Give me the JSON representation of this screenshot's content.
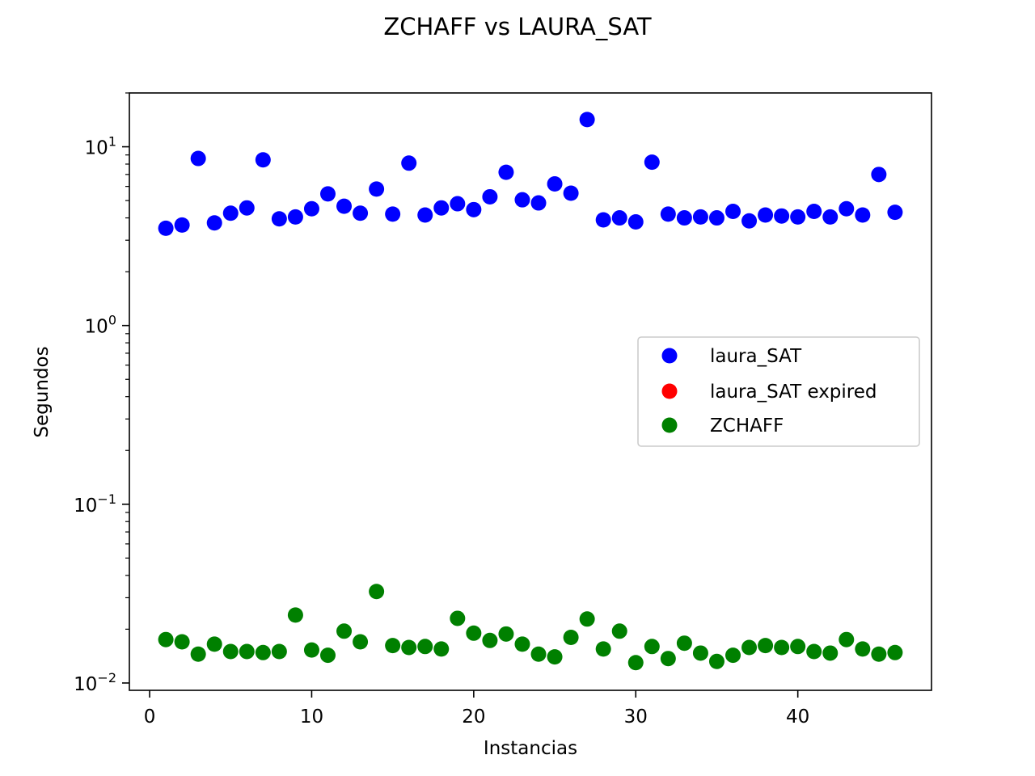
{
  "chart_data": {
    "type": "scatter",
    "title": "ZCHAFF vs LAURA_SAT",
    "xlabel": "Instancias",
    "ylabel": "Segundos",
    "yscale": "log",
    "xlim": [
      -1.25,
      48.25
    ],
    "ylim": [
      0.0091,
      20.0
    ],
    "x_ticks": [
      0,
      10,
      20,
      30,
      40
    ],
    "y_ticks": [
      {
        "value": 0.01,
        "base": "10",
        "exp": "−2"
      },
      {
        "value": 0.1,
        "base": "10",
        "exp": "−1"
      },
      {
        "value": 1,
        "base": "10",
        "exp": "0"
      },
      {
        "value": 10,
        "base": "10",
        "exp": "1"
      }
    ],
    "grid": false,
    "legend_position": "center-right",
    "series": [
      {
        "name": "laura_SAT",
        "color": "#0000ff",
        "x": [
          1,
          2,
          3,
          4,
          5,
          6,
          7,
          8,
          9,
          10,
          11,
          12,
          13,
          14,
          15,
          16,
          17,
          18,
          19,
          20,
          21,
          22,
          23,
          24,
          25,
          26,
          27,
          28,
          29,
          30,
          31,
          32,
          33,
          34,
          35,
          36,
          37,
          38,
          39,
          40,
          41,
          42,
          43,
          44,
          45,
          46
        ],
        "y": [
          3.5,
          3.65,
          8.6,
          3.75,
          4.25,
          4.55,
          8.45,
          3.95,
          4.05,
          4.5,
          5.45,
          4.65,
          4.25,
          5.8,
          4.2,
          8.1,
          4.15,
          4.55,
          4.8,
          4.45,
          5.25,
          7.2,
          5.05,
          4.85,
          6.2,
          5.5,
          14.2,
          3.9,
          4.0,
          3.8,
          8.2,
          4.2,
          4.0,
          4.05,
          4.0,
          4.35,
          3.85,
          4.15,
          4.1,
          4.05,
          4.35,
          4.05,
          4.5,
          4.15,
          7.0,
          4.3
        ]
      },
      {
        "name": "laura_SAT expired",
        "color": "#ff0000",
        "x": [],
        "y": []
      },
      {
        "name": "ZCHAFF",
        "color": "#008000",
        "x": [
          1,
          2,
          3,
          4,
          5,
          6,
          7,
          8,
          9,
          10,
          11,
          12,
          13,
          14,
          15,
          16,
          17,
          18,
          19,
          20,
          21,
          22,
          23,
          24,
          25,
          26,
          27,
          28,
          29,
          30,
          31,
          32,
          33,
          34,
          35,
          36,
          37,
          38,
          39,
          40,
          41,
          42,
          43,
          44,
          45,
          46
        ],
        "y": [
          0.0175,
          0.017,
          0.0145,
          0.0165,
          0.015,
          0.015,
          0.0148,
          0.015,
          0.024,
          0.0153,
          0.0143,
          0.0195,
          0.017,
          0.0325,
          0.0162,
          0.0158,
          0.016,
          0.0155,
          0.023,
          0.019,
          0.0173,
          0.0188,
          0.0165,
          0.0145,
          0.014,
          0.018,
          0.0228,
          0.0155,
          0.0195,
          0.013,
          0.016,
          0.0137,
          0.0167,
          0.0147,
          0.0132,
          0.0143,
          0.0158,
          0.0162,
          0.0158,
          0.016,
          0.015,
          0.0147,
          0.0175,
          0.0155,
          0.0145,
          0.0148
        ]
      }
    ]
  }
}
